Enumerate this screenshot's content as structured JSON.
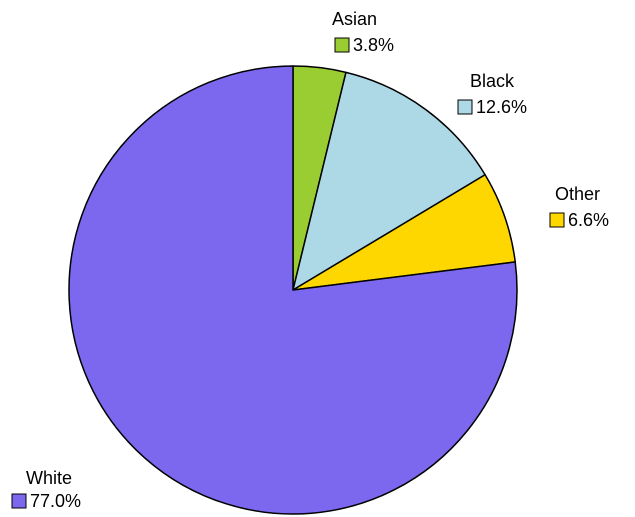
{
  "chart_data": {
    "type": "pie",
    "title": "",
    "start": "12 o'clock",
    "direction": "clockwise",
    "slices": [
      {
        "label": "Asian",
        "value_label": "3.8%",
        "value": 3.8,
        "color": "#9acd32"
      },
      {
        "label": "Black",
        "value_label": "12.6%",
        "value": 12.6,
        "color": "#add8e6"
      },
      {
        "label": "Other",
        "value_label": "6.6%",
        "value": 6.6,
        "color": "#ffd700"
      },
      {
        "label": "White",
        "value_label": "77.0%",
        "value": 77.0,
        "color": "#7b68ee"
      }
    ]
  }
}
